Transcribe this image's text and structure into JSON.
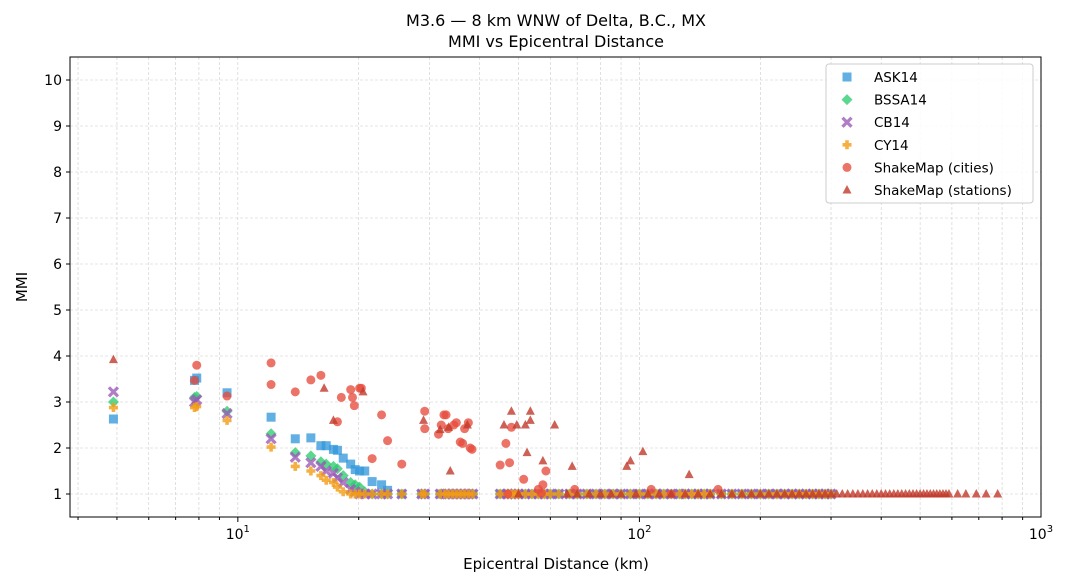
{
  "chart_data": {
    "type": "scatter",
    "title": "M3.6 — 8 km WNW of Delta, B.C., MX",
    "subtitle": "MMI vs Epicentral Distance",
    "xlabel": "Epicentral Distance (km)",
    "ylabel": "MMI",
    "xscale": "log",
    "xlim": [
      3.82,
      1000
    ],
    "ylim": [
      0.5,
      10.5
    ],
    "yticks": [
      1,
      2,
      3,
      4,
      5,
      6,
      7,
      8,
      9,
      10
    ],
    "xticks": [
      {
        "base": "10",
        "exp": "1",
        "value": 10
      },
      {
        "base": "10",
        "exp": "2",
        "value": 100
      },
      {
        "base": "10",
        "exp": "3",
        "value": 1000
      }
    ],
    "grid": true,
    "legend_position": "top-right",
    "model_x": [
      4.9,
      7.8,
      7.9,
      9.4,
      12.1,
      13.9,
      15.2,
      16.1,
      16.6,
      17.3,
      17.7,
      18.3,
      19.1,
      19.6,
      20.1,
      20.7,
      21.6,
      22.8,
      23.6,
      25.6,
      28.7,
      29.2,
      31.9,
      32.8,
      33.5,
      34.3,
      35.1,
      35.9,
      36.7,
      37.6,
      38.5,
      45,
      47,
      48,
      49,
      50,
      52,
      54,
      56,
      58,
      60,
      63,
      67,
      70,
      74,
      78,
      82,
      86,
      90,
      95,
      100,
      105,
      110,
      115,
      120,
      126,
      130,
      135,
      140,
      145,
      150,
      160,
      170,
      180,
      190,
      200,
      210,
      220,
      230,
      240,
      250,
      260,
      270,
      280,
      290,
      300
    ],
    "series": [
      {
        "name": "ASK14",
        "marker": "square",
        "color": "#3498db",
        "values": [
          2.63,
          3.47,
          3.52,
          3.2,
          2.67,
          2.2,
          2.22,
          2.05,
          2.05,
          1.97,
          1.95,
          1.78,
          1.65,
          1.53,
          1.5,
          1.5,
          1.27,
          1.2,
          1.08,
          1,
          1,
          1,
          1,
          1,
          1,
          1,
          1,
          1,
          1,
          1,
          1,
          1,
          1,
          1,
          1,
          1,
          1,
          1,
          1,
          1,
          1,
          1,
          1,
          1,
          1,
          1,
          1,
          1,
          1,
          1,
          1,
          1,
          1,
          1,
          1,
          1,
          1,
          1,
          1,
          1,
          1,
          1,
          1,
          1,
          1,
          1,
          1,
          1,
          1,
          1,
          1,
          1,
          1,
          1,
          1,
          1
        ]
      },
      {
        "name": "BSSA14",
        "marker": "diamond",
        "color": "#2ecc71",
        "values": [
          3.0,
          3.1,
          3.12,
          2.8,
          2.31,
          1.9,
          1.83,
          1.7,
          1.65,
          1.6,
          1.55,
          1.4,
          1.25,
          1.2,
          1.15,
          1.05,
          1,
          1,
          1,
          1,
          1,
          1,
          1,
          1,
          1,
          1,
          1,
          1,
          1,
          1,
          1,
          1,
          1,
          1,
          1,
          1,
          1,
          1,
          1,
          1,
          1,
          1,
          1,
          1,
          1,
          1,
          1,
          1,
          1,
          1,
          1,
          1,
          1,
          1,
          1,
          1,
          1,
          1,
          1,
          1,
          1,
          1,
          1,
          1,
          1,
          1,
          1,
          1,
          1,
          1,
          1,
          1,
          1,
          1,
          1,
          1
        ]
      },
      {
        "name": "CB14",
        "marker": "x",
        "color": "#9b59b6",
        "values": [
          3.22,
          3.0,
          3.05,
          2.75,
          2.2,
          1.8,
          1.68,
          1.6,
          1.5,
          1.45,
          1.35,
          1.25,
          1.1,
          1.05,
          1,
          1,
          1,
          1,
          1,
          1,
          1,
          1,
          1,
          1,
          1,
          1,
          1,
          1,
          1,
          1,
          1,
          1,
          1,
          1,
          1,
          1,
          1,
          1,
          1,
          1,
          1,
          1,
          1,
          1,
          1,
          1,
          1,
          1,
          1,
          1,
          1,
          1,
          1,
          1,
          1,
          1,
          1,
          1,
          1,
          1,
          1,
          1,
          1,
          1,
          1,
          1,
          1,
          1,
          1,
          1,
          1,
          1,
          1,
          1,
          1,
          1
        ]
      },
      {
        "name": "CY14",
        "marker": "plus",
        "color": "#f39c12",
        "values": [
          2.88,
          2.88,
          2.9,
          2.6,
          2.02,
          1.6,
          1.5,
          1.4,
          1.3,
          1.25,
          1.15,
          1.05,
          1,
          1,
          1,
          1,
          1,
          1,
          1,
          1,
          1,
          1,
          1,
          1,
          1,
          1,
          1,
          1,
          1,
          1,
          1,
          1,
          1,
          1,
          1,
          1,
          1,
          1,
          1,
          1,
          1,
          1,
          1,
          1,
          1,
          1,
          1,
          1,
          1,
          1,
          1,
          1,
          1,
          1,
          1,
          1,
          1,
          1,
          1,
          1,
          1,
          1,
          1,
          1,
          1,
          1,
          1,
          1,
          1,
          1,
          1,
          1,
          1,
          1,
          1,
          1
        ]
      },
      {
        "name": "ShakeMap (cities)",
        "marker": "circle",
        "color": "#e74c3c",
        "points": [
          [
            7.9,
            3.8
          ],
          [
            7.8,
            3.47
          ],
          [
            9.4,
            3.13
          ],
          [
            12.1,
            3.85
          ],
          [
            12.1,
            3.38
          ],
          [
            13.9,
            3.22
          ],
          [
            15.2,
            3.48
          ],
          [
            16.1,
            3.58
          ],
          [
            17.7,
            2.57
          ],
          [
            18.1,
            3.1
          ],
          [
            19.1,
            3.27
          ],
          [
            19.3,
            3.1
          ],
          [
            19.5,
            2.92
          ],
          [
            20.1,
            3.3
          ],
          [
            20.3,
            3.3
          ],
          [
            21.6,
            1.77
          ],
          [
            22.8,
            2.72
          ],
          [
            23.6,
            2.16
          ],
          [
            25.6,
            1.65
          ],
          [
            29.2,
            2.8
          ],
          [
            29.2,
            2.42
          ],
          [
            31.6,
            2.3
          ],
          [
            32.1,
            2.5
          ],
          [
            32.6,
            2.72
          ],
          [
            33,
            2.72
          ],
          [
            33.4,
            2.42
          ],
          [
            34.5,
            2.5
          ],
          [
            35,
            2.55
          ],
          [
            35.8,
            2.13
          ],
          [
            36.3,
            2.1
          ],
          [
            36.7,
            2.42
          ],
          [
            37.5,
            2.55
          ],
          [
            37.9,
            2.0
          ],
          [
            38.3,
            1.97
          ],
          [
            45,
            1.63
          ],
          [
            46.5,
            2.1
          ],
          [
            47.5,
            1.68
          ],
          [
            48,
            2.45
          ],
          [
            51.5,
            1.32
          ],
          [
            56,
            1.1
          ],
          [
            57.5,
            1.2
          ],
          [
            58.5,
            1.5
          ],
          [
            69,
            1.1
          ],
          [
            107,
            1.1
          ],
          [
            157,
            1.1
          ],
          [
            47,
            1.0
          ],
          [
            57,
            1.02
          ],
          [
            120,
            1.0
          ]
        ]
      },
      {
        "name": "ShakeMap (stations)",
        "marker": "triangle",
        "color": "#c0392b",
        "points": [
          [
            4.9,
            3.92
          ],
          [
            16.4,
            3.3
          ],
          [
            17.3,
            2.6
          ],
          [
            20.5,
            3.22
          ],
          [
            29,
            2.6
          ],
          [
            31.9,
            2.4
          ],
          [
            33.5,
            2.45
          ],
          [
            33.8,
            1.5
          ],
          [
            37.3,
            2.5
          ],
          [
            46,
            2.5
          ],
          [
            48,
            2.8
          ],
          [
            49.5,
            2.5
          ],
          [
            52,
            2.5
          ],
          [
            52.5,
            1.9
          ],
          [
            53.5,
            2.8
          ],
          [
            53.5,
            2.6
          ],
          [
            57.5,
            1.72
          ],
          [
            61.5,
            2.5
          ],
          [
            68,
            1.6
          ],
          [
            93,
            1.6
          ],
          [
            95,
            1.72
          ],
          [
            102,
            1.92
          ],
          [
            133,
            1.42
          ],
          [
            50,
            1.0
          ],
          [
            66,
            1
          ],
          [
            70,
            1
          ],
          [
            75,
            1
          ],
          [
            80,
            1
          ],
          [
            85,
            1
          ],
          [
            90,
            1
          ],
          [
            98,
            1
          ],
          [
            105,
            1
          ],
          [
            112,
            1
          ],
          [
            120,
            1
          ],
          [
            130,
            1
          ],
          [
            140,
            1
          ],
          [
            150,
            1
          ],
          [
            160,
            1
          ],
          [
            170,
            1
          ],
          [
            180,
            1
          ],
          [
            190,
            1
          ],
          [
            200,
            1
          ],
          [
            210,
            1
          ],
          [
            220,
            1
          ],
          [
            230,
            1
          ],
          [
            240,
            1
          ],
          [
            250,
            1
          ],
          [
            260,
            1
          ],
          [
            270,
            1
          ],
          [
            280,
            1
          ],
          [
            290,
            1
          ],
          [
            300,
            1
          ],
          [
            310,
            1
          ],
          [
            320,
            1
          ],
          [
            330,
            1
          ],
          [
            340,
            1
          ],
          [
            350,
            1
          ],
          [
            360,
            1
          ],
          [
            370,
            1
          ],
          [
            380,
            1
          ],
          [
            390,
            1
          ],
          [
            400,
            1
          ],
          [
            410,
            1
          ],
          [
            420,
            1
          ],
          [
            430,
            1
          ],
          [
            440,
            1
          ],
          [
            450,
            1
          ],
          [
            460,
            1
          ],
          [
            470,
            1
          ],
          [
            480,
            1
          ],
          [
            490,
            1
          ],
          [
            500,
            1
          ],
          [
            510,
            1
          ],
          [
            520,
            1
          ],
          [
            530,
            1
          ],
          [
            540,
            1
          ],
          [
            550,
            1
          ],
          [
            560,
            1
          ],
          [
            570,
            1
          ],
          [
            580,
            1
          ],
          [
            590,
            1
          ],
          [
            620,
            1
          ],
          [
            650,
            1
          ],
          [
            690,
            1
          ],
          [
            730,
            1
          ],
          [
            780,
            1
          ]
        ]
      }
    ]
  }
}
